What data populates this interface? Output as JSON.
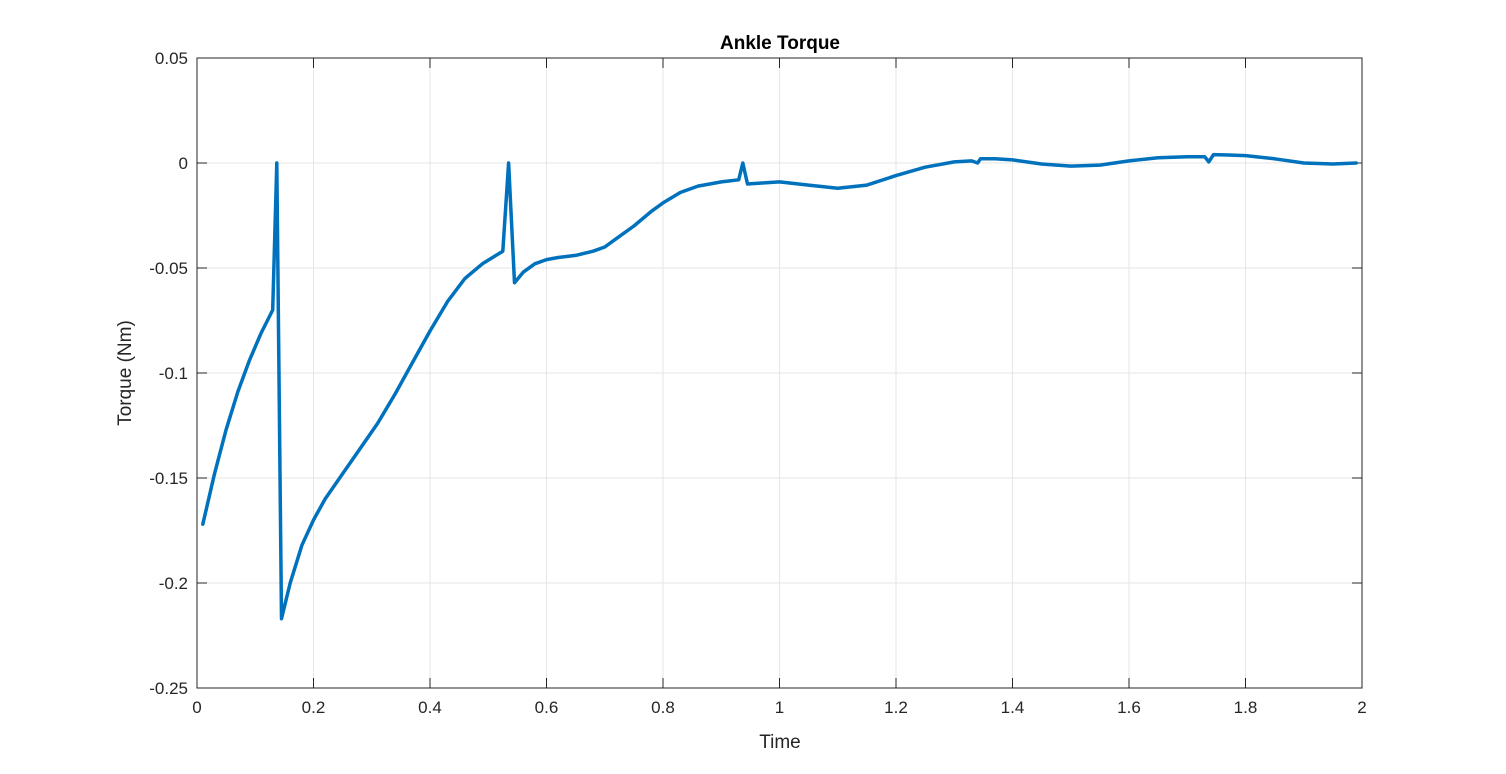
{
  "chart_data": {
    "type": "line",
    "title": "Ankle Torque",
    "xlabel": "Time",
    "ylabel": "Torque (Nm)",
    "xlim": [
      0,
      2
    ],
    "ylim": [
      -0.25,
      0.05
    ],
    "xticks": [
      0,
      0.2,
      0.4,
      0.6,
      0.8,
      1,
      1.2,
      1.4,
      1.6,
      1.8,
      2
    ],
    "xtick_labels": [
      "0",
      "0.2",
      "0.4",
      "0.6",
      "0.8",
      "1",
      "1.2",
      "1.4",
      "1.6",
      "1.8",
      "2"
    ],
    "yticks": [
      -0.25,
      -0.2,
      -0.15,
      -0.1,
      -0.05,
      0,
      0.05
    ],
    "ytick_labels": [
      "-0.25",
      "-0.2",
      "-0.15",
      "-0.1",
      "-0.05",
      "0",
      "0.05"
    ],
    "grid": true,
    "colors": {
      "line": "#0072BD",
      "grid": "#e6e6e6",
      "axes": "#262626"
    },
    "series": [
      {
        "x": [
          0.01,
          0.03,
          0.05,
          0.07,
          0.09,
          0.11,
          0.13,
          0.137,
          0.145,
          0.16,
          0.18,
          0.2,
          0.22,
          0.25,
          0.28,
          0.31,
          0.34,
          0.37,
          0.4,
          0.43,
          0.46,
          0.49,
          0.525,
          0.535,
          0.545,
          0.56,
          0.58,
          0.6,
          0.62,
          0.65,
          0.68,
          0.7,
          0.72,
          0.75,
          0.78,
          0.8,
          0.83,
          0.86,
          0.9,
          0.93,
          0.937,
          0.945,
          0.97,
          1.0,
          1.05,
          1.1,
          1.15,
          1.2,
          1.25,
          1.3,
          1.33,
          1.34,
          1.345,
          1.37,
          1.4,
          1.45,
          1.5,
          1.55,
          1.6,
          1.65,
          1.7,
          1.73,
          1.737,
          1.745,
          1.77,
          1.8,
          1.85,
          1.9,
          1.95,
          1.99
        ],
        "y": [
          -0.172,
          -0.148,
          -0.127,
          -0.109,
          -0.094,
          -0.081,
          -0.07,
          0.0,
          -0.217,
          -0.2,
          -0.182,
          -0.17,
          -0.16,
          -0.148,
          -0.136,
          -0.124,
          -0.11,
          -0.095,
          -0.08,
          -0.066,
          -0.055,
          -0.048,
          -0.042,
          0.0,
          -0.057,
          -0.052,
          -0.048,
          -0.046,
          -0.045,
          -0.044,
          -0.042,
          -0.04,
          -0.036,
          -0.03,
          -0.023,
          -0.019,
          -0.014,
          -0.011,
          -0.009,
          -0.008,
          0.0,
          -0.01,
          -0.0095,
          -0.009,
          -0.0105,
          -0.012,
          -0.0105,
          -0.006,
          -0.002,
          0.0005,
          0.001,
          0.0,
          0.002,
          0.002,
          0.0015,
          -0.0005,
          -0.0015,
          -0.001,
          0.001,
          0.0025,
          0.003,
          0.003,
          0.0005,
          0.004,
          0.0038,
          0.0035,
          0.002,
          0.0,
          -0.0005,
          0.0
        ]
      }
    ]
  }
}
